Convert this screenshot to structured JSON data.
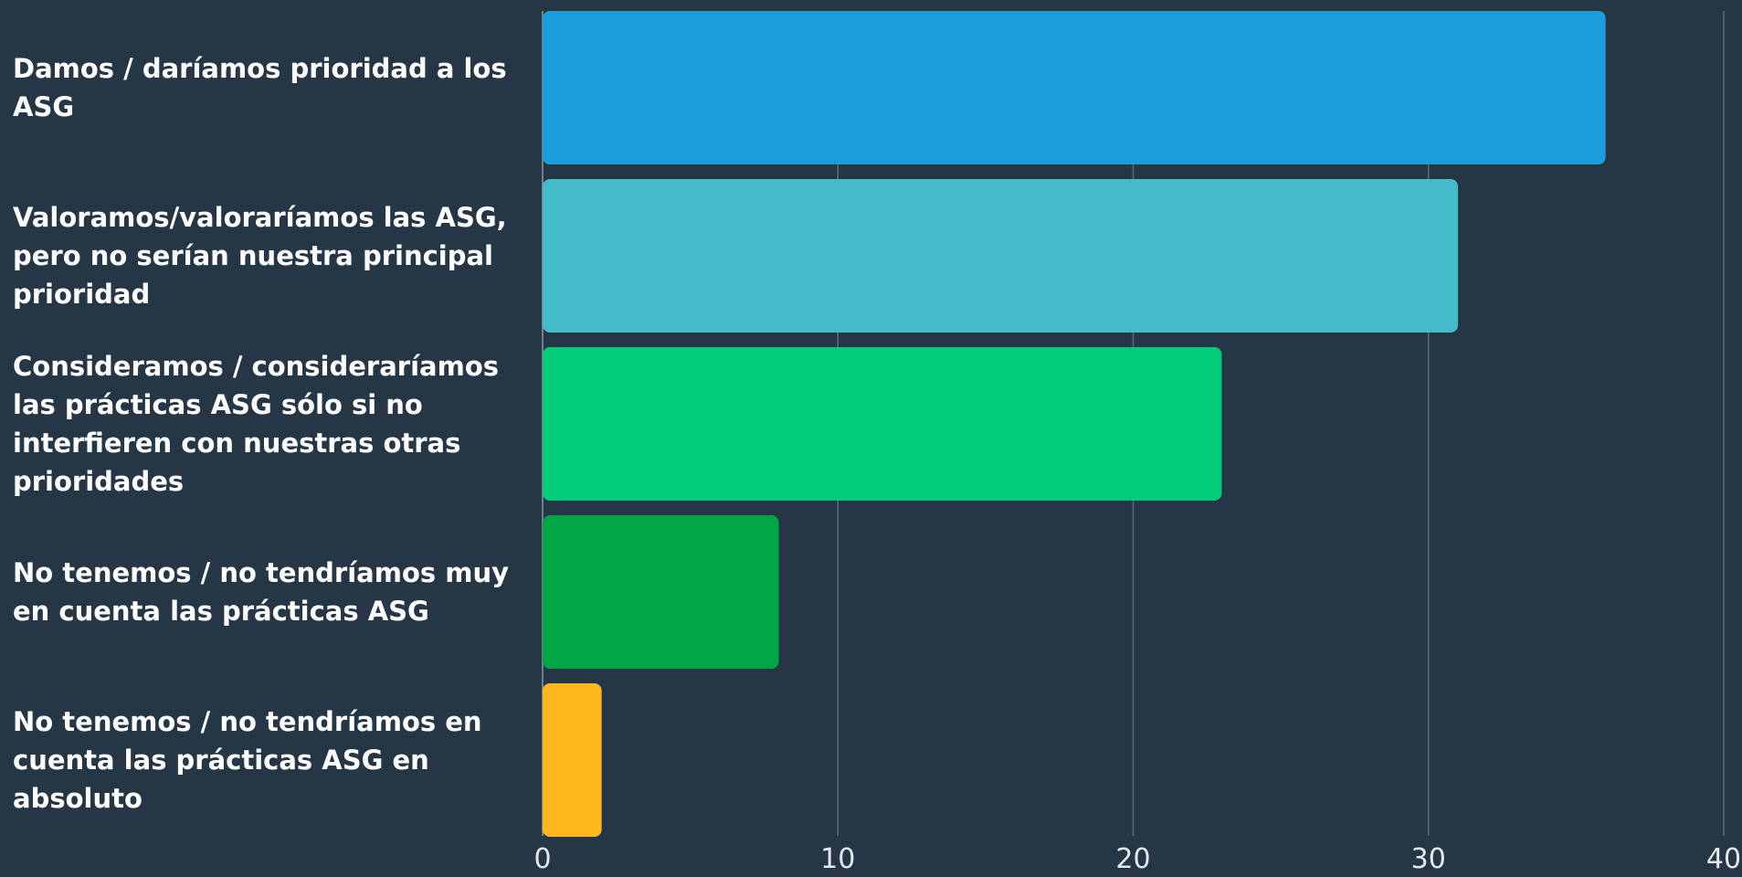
{
  "chart_data": {
    "type": "bar",
    "orientation": "horizontal",
    "categories": [
      "Damos / daríamos prioridad a los ASG",
      "Valoramos/valoraríamos las ASG, pero no serían nuestra principal prioridad",
      "Consideramos / consideraríamos las prácticas ASG sólo si no interfieren con nuestras otras prioridades",
      "No tenemos / no tendríamos muy en cuenta las prácticas ASG",
      "No tenemos / no tendríamos en cuenta las prácticas ASG en absoluto"
    ],
    "values": [
      36,
      31,
      23,
      8,
      2
    ],
    "colors": [
      "#1b9dd9",
      "#44bbc8",
      "#00cc7a",
      "#00a644",
      "#fdb81e"
    ],
    "xlim": [
      0,
      40
    ],
    "xticks": [
      0,
      10,
      20,
      30,
      40
    ],
    "grid": true,
    "background": "#253746"
  }
}
